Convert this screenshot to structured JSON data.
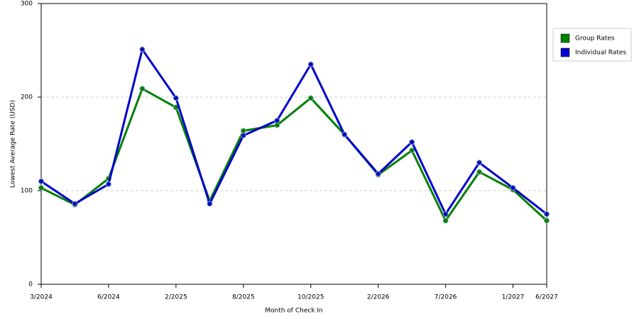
{
  "chart_data": {
    "type": "line",
    "x_label": "Month of Check In",
    "y_label": "Lowest Average Rate (USD)",
    "categories": [
      "3/2024",
      null,
      "6/2024",
      null,
      "2/2025",
      null,
      "8/2025",
      null,
      "10/2025",
      null,
      "2/2026",
      null,
      "7/2026",
      null,
      "1/2027",
      "6/2027"
    ],
    "series": [
      {
        "name": "Group Rates",
        "color": "#008000",
        "values": [
          103,
          85,
          113,
          209,
          189,
          89,
          164,
          170,
          199,
          160,
          117,
          143,
          68,
          120,
          101,
          68
        ]
      },
      {
        "name": "Individual Rates",
        "color": "#0000cc",
        "values": [
          110,
          86,
          107,
          251,
          199,
          86,
          159,
          175,
          235,
          160,
          118,
          152,
          75,
          130,
          103,
          75
        ]
      }
    ],
    "ylim": [
      0,
      300
    ],
    "yticks": [
      0,
      100,
      200,
      300
    ],
    "grid": true,
    "legend": "right"
  }
}
